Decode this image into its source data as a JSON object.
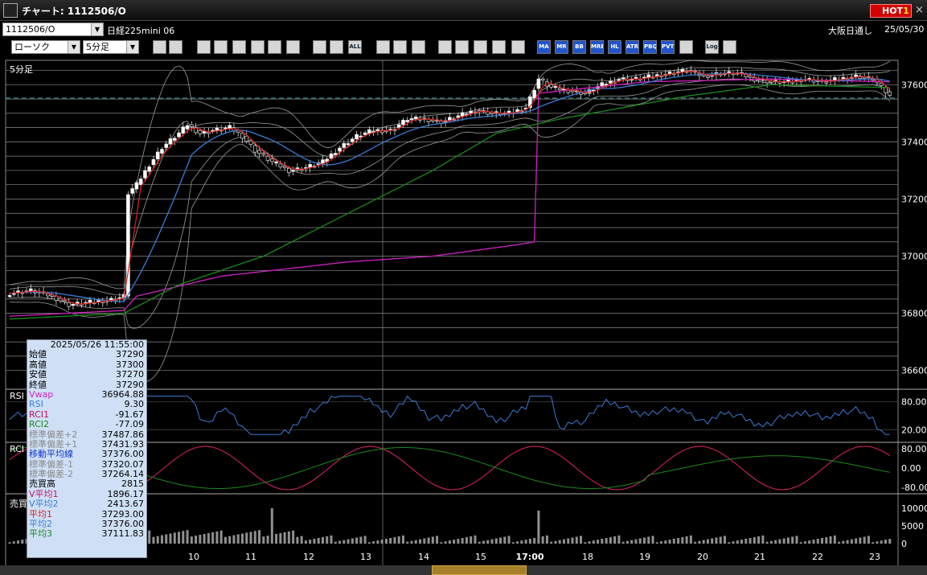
{
  "window": {
    "title": "チャート: 1112506/O",
    "hot_label": "HOT",
    "hot_num": "1",
    "close": "×"
  },
  "symbol": {
    "code": "1112506/O",
    "name": "日経225mini 06",
    "session": "大阪日通し",
    "date": "25/05/30"
  },
  "chart_type": "ローソク",
  "interval": "5分足",
  "toolbar_icons": [
    "search-icon",
    "grid-icon",
    "pencil-icon",
    "line-tool-icon",
    "cursor-icon",
    "rotate-icon",
    "notepad-icon",
    "trash-icon",
    "zoom-in-icon",
    "zoom-out-icon",
    "ALL",
    "settings-icon",
    "wrench-icon",
    "palette-icon",
    "download-icon",
    "magnify-icon",
    "table-icon",
    "candle-table-icon",
    "disabled-icon",
    "MA",
    "MR",
    "BB",
    "MRE",
    "HL",
    "ATR",
    "PBQ",
    "PVT",
    "box-icon",
    "Log",
    "export-icon"
  ],
  "colors": {
    "candle_up": "#ffffff",
    "ma1": "#e02020",
    "ma2": "#3a7bd5",
    "ma3": "#1a8a1a",
    "vwap": "#d020c0",
    "band": "#9a9a9a",
    "rsi": "#3a7bd5",
    "rci1": "#e0206a",
    "rci2": "#1a8a1a",
    "volume": "#909090"
  },
  "panels": {
    "main_label": "5分足",
    "rsi_label": "RSI",
    "rci_label": "RCI",
    "volume_label": "売買"
  },
  "axes": {
    "price_ticks": [
      "37600",
      "37400",
      "37200",
      "37000",
      "36800",
      "36600"
    ],
    "rsi_ticks": [
      "80.00",
      "20.00"
    ],
    "rci_ticks": [
      "80.00",
      "0.00",
      "-80.00"
    ],
    "volume_ticks": [
      "10000",
      "5000",
      "0"
    ],
    "x_ticks": [
      "10",
      "11",
      "12",
      "13",
      "14",
      "15",
      "17:00",
      "18",
      "19",
      "20",
      "21",
      "22",
      "23"
    ]
  },
  "infobox": {
    "datetime": "2025/05/26  11:55:00",
    "rows": [
      {
        "label": "始値",
        "value": "37290",
        "color": "#000000"
      },
      {
        "label": "高値",
        "value": "37300",
        "color": "#000000"
      },
      {
        "label": "安値",
        "value": "37270",
        "color": "#000000"
      },
      {
        "label": "終値",
        "value": "37290",
        "color": "#000000"
      },
      {
        "label": "Vwap",
        "value": "36964.88",
        "color": "#d020c0"
      },
      {
        "label": "RSI",
        "value": "9.30",
        "color": "#3a7bd5"
      },
      {
        "label": "RCI1",
        "value": "-91.67",
        "color": "#c01060"
      },
      {
        "label": "RCI2",
        "value": "-77.09",
        "color": "#1a8a1a"
      },
      {
        "label": "標準偏差+2",
        "value": "37487.86",
        "color": "#8a8a8a"
      },
      {
        "label": "標準偏差+1",
        "value": "37431.93",
        "color": "#8a8a8a"
      },
      {
        "label": "移動平均線",
        "value": "37376.00",
        "color": "#1133cc"
      },
      {
        "label": "標準偏差-1",
        "value": "37320.07",
        "color": "#8a8a8a"
      },
      {
        "label": "標準偏差-2",
        "value": "37264.14",
        "color": "#8a8a8a"
      },
      {
        "label": "売買高",
        "value": "2815",
        "color": "#000000"
      },
      {
        "label": "V平均1",
        "value": "1896.17",
        "color": "#c01060"
      },
      {
        "label": "V平均2",
        "value": "2413.67",
        "color": "#3a7bd5"
      },
      {
        "label": "平均1",
        "value": "37293.00",
        "color": "#e02020"
      },
      {
        "label": "平均2",
        "value": "37376.00",
        "color": "#3a7bd5"
      },
      {
        "label": "平均3",
        "value": "37111.83",
        "color": "#1a8a1a"
      }
    ]
  },
  "chart_data": {
    "type": "candlestick",
    "x_labels": [
      "10",
      "11",
      "12",
      "13",
      "14",
      "15",
      "17:00",
      "18",
      "19",
      "20",
      "21",
      "22",
      "23"
    ],
    "close_path": [
      [
        0,
        36870
      ],
      [
        5,
        36880
      ],
      [
        10,
        36860
      ],
      [
        14,
        36830
      ],
      [
        20,
        36840
      ],
      [
        25,
        36850
      ],
      [
        27,
        36860
      ],
      [
        28,
        37220
      ],
      [
        30,
        37250
      ],
      [
        33,
        37320
      ],
      [
        36,
        37380
      ],
      [
        40,
        37430
      ],
      [
        42,
        37460
      ],
      [
        45,
        37430
      ],
      [
        48,
        37440
      ],
      [
        52,
        37450
      ],
      [
        55,
        37420
      ],
      [
        58,
        37370
      ],
      [
        62,
        37330
      ],
      [
        66,
        37300
      ],
      [
        70,
        37310
      ],
      [
        74,
        37330
      ],
      [
        78,
        37380
      ],
      [
        82,
        37420
      ],
      [
        86,
        37440
      ],
      [
        90,
        37440
      ],
      [
        94,
        37480
      ],
      [
        98,
        37480
      ],
      [
        102,
        37470
      ],
      [
        106,
        37490
      ],
      [
        110,
        37510
      ],
      [
        114,
        37500
      ],
      [
        118,
        37500
      ],
      [
        122,
        37520
      ],
      [
        125,
        37620
      ],
      [
        128,
        37590
      ],
      [
        132,
        37580
      ],
      [
        136,
        37570
      ],
      [
        140,
        37600
      ],
      [
        144,
        37620
      ],
      [
        148,
        37620
      ],
      [
        152,
        37630
      ],
      [
        156,
        37640
      ],
      [
        160,
        37650
      ],
      [
        164,
        37630
      ],
      [
        168,
        37640
      ],
      [
        172,
        37640
      ],
      [
        176,
        37620
      ],
      [
        180,
        37610
      ],
      [
        184,
        37610
      ],
      [
        188,
        37620
      ],
      [
        192,
        37610
      ],
      [
        196,
        37620
      ],
      [
        200,
        37630
      ],
      [
        204,
        37620
      ],
      [
        208,
        37560
      ]
    ],
    "vwap_path": [
      [
        0,
        36790
      ],
      [
        27,
        36810
      ],
      [
        30,
        36860
      ],
      [
        50,
        36930
      ],
      [
        80,
        36980
      ],
      [
        100,
        37000
      ],
      [
        120,
        37040
      ],
      [
        124,
        37050
      ],
      [
        125,
        37570
      ],
      [
        150,
        37610
      ],
      [
        180,
        37620
      ],
      [
        208,
        37610
      ]
    ],
    "ma_slow_path": [
      [
        0,
        36780
      ],
      [
        27,
        36800
      ],
      [
        40,
        36900
      ],
      [
        60,
        37000
      ],
      [
        80,
        37150
      ],
      [
        100,
        37300
      ],
      [
        115,
        37430
      ],
      [
        130,
        37480
      ],
      [
        160,
        37560
      ],
      [
        180,
        37600
      ],
      [
        208,
        37590
      ]
    ]
  }
}
